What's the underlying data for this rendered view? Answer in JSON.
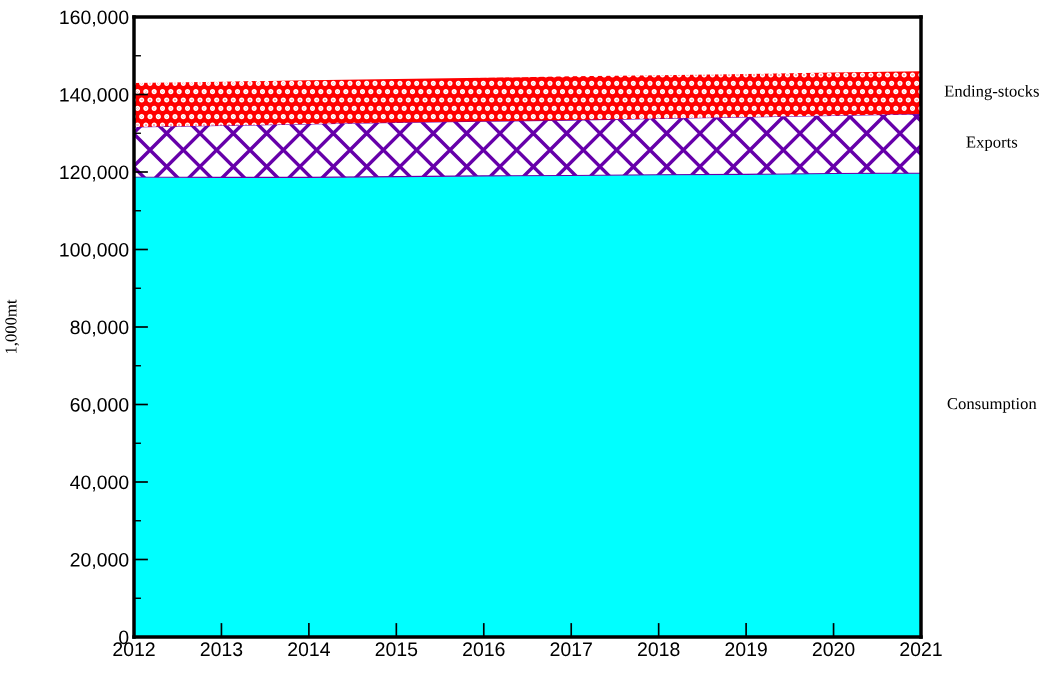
{
  "chart_data": {
    "type": "area",
    "stacked": true,
    "ylabel": "1,000mt",
    "x": [
      2012,
      2013,
      2014,
      2015,
      2016,
      2017,
      2018,
      2019,
      2020,
      2021
    ],
    "series": [
      {
        "name": "Consumption",
        "color": "#00ffff",
        "values": [
          118700,
          118600,
          118600,
          118800,
          119000,
          119100,
          119300,
          119400,
          119600,
          119700
        ]
      },
      {
        "name": "Exports",
        "color": "#6600aa",
        "values": [
          12900,
          13400,
          13800,
          14000,
          14100,
          14300,
          14500,
          14800,
          15000,
          15300
        ]
      },
      {
        "name": "Ending-stocks",
        "color": "#ff0000",
        "values": [
          11400,
          11300,
          11300,
          11200,
          11200,
          11300,
          11200,
          11100,
          11100,
          11000
        ]
      }
    ],
    "xlim": [
      2012,
      2021
    ],
    "xticks": [
      2012,
      2013,
      2014,
      2015,
      2016,
      2017,
      2018,
      2019,
      2020,
      2021
    ],
    "ylim": [
      0,
      160000
    ],
    "yticks": [
      {
        "value": 0,
        "label": "0"
      },
      {
        "value": 20000,
        "label": "20,000"
      },
      {
        "value": 40000,
        "label": "40,000"
      },
      {
        "value": 60000,
        "label": "60,000"
      },
      {
        "value": 80000,
        "label": "80,000"
      },
      {
        "value": 100000,
        "label": "100,000"
      },
      {
        "value": 120000,
        "label": "120,000"
      },
      {
        "value": 140000,
        "label": "140,000"
      },
      {
        "value": 160000,
        "label": "160,000"
      }
    ],
    "grid": false,
    "legend": false
  }
}
